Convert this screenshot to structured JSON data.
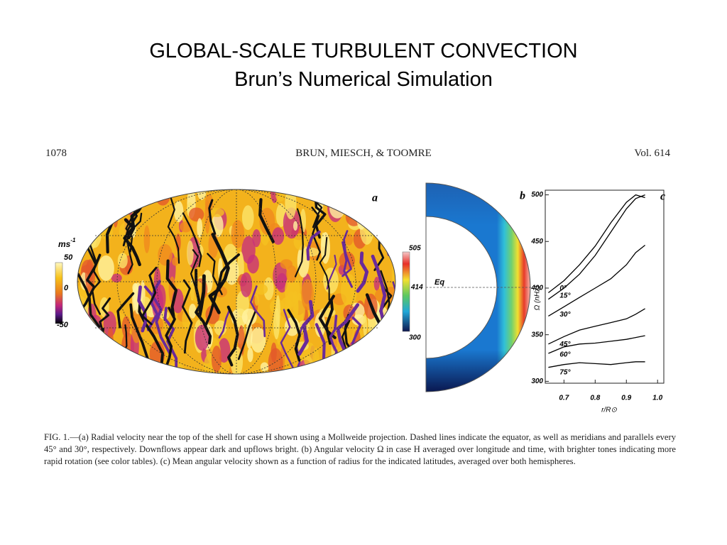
{
  "slide": {
    "title": "GLOBAL-SCALE TURBULENT CONVECTION",
    "subtitle": "Brun’s  Numerical Simulation"
  },
  "figure": {
    "page": "1078",
    "authors": "BRUN, MIESCH, & TOOMRE",
    "volume": "Vol.  614",
    "panel_a": {
      "label": "a",
      "unit": "ms",
      "unit_exp": "-1",
      "colorbar_ticks": [
        "50",
        "0",
        "-50"
      ]
    },
    "panel_b": {
      "label": "b",
      "equator": "Eq",
      "colorbar_ticks": [
        "505",
        "414",
        "300"
      ]
    },
    "caption": "FIG. 1.—(a) Radial velocity near the top of the shell for case H shown using a Mollweide projection. Dashed lines indicate the equator, as well as meridians and parallels every 45° and 30°, respectively. Downflows appear dark and upflows bright. (b) Angular velocity Ω in case H averaged over longitude and time, with brighter tones indicating more rapid rotation (see color tables). (c) Mean angular velocity shown as a function of radius for the indicated latitudes, averaged over both hemispheres."
  },
  "chart_data": {
    "type": "line",
    "panel_label": "c",
    "x_label": "r/R⊙",
    "y_label": "Ω (nHz)",
    "x": [
      0.65,
      0.7,
      0.75,
      0.8,
      0.85,
      0.9,
      0.93,
      0.96
    ],
    "series": [
      {
        "name": "0°",
        "color": "#000000",
        "values": [
          395,
          408,
          425,
          445,
          470,
          492,
          500,
          497
        ]
      },
      {
        "name": "15°",
        "color": "#000000",
        "values": [
          388,
          400,
          415,
          435,
          460,
          485,
          496,
          500
        ]
      },
      {
        "name": "30°",
        "color": "#000000",
        "values": [
          370,
          380,
          390,
          400,
          410,
          425,
          438,
          446
        ]
      },
      {
        "name": "45°",
        "color": "#000000",
        "values": [
          340,
          348,
          355,
          359,
          363,
          367,
          372,
          378
        ]
      },
      {
        "name": "60°",
        "color": "#000000",
        "values": [
          330,
          337,
          340,
          341,
          343,
          345,
          347,
          349
        ]
      },
      {
        "name": "75°",
        "color": "#000000",
        "values": [
          315,
          318,
          320,
          319,
          318,
          320,
          321,
          321
        ]
      }
    ],
    "xlim": [
      0.64,
      1.02
    ],
    "ylim": [
      298,
      505
    ],
    "xticks": [
      0.7,
      0.8,
      0.9,
      {
        "value": 1,
        "label": "1.0"
      }
    ],
    "yticks": [
      300,
      350,
      400,
      450,
      500
    ]
  }
}
